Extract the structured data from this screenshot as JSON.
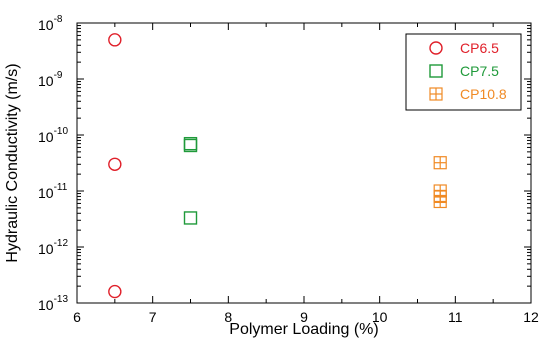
{
  "chart_data": {
    "type": "scatter",
    "xlabel": "Polymer Loading (%)",
    "ylabel": "Hydraulic Conductivity (m/s)",
    "xlim": [
      6,
      12
    ],
    "ylim": [
      1e-13,
      1e-08
    ],
    "yscale": "log",
    "x_ticks": [
      6,
      7,
      8,
      9,
      10,
      11,
      12
    ],
    "x_tick_labels": [
      "6",
      "7",
      "8",
      "9",
      "10",
      "11",
      "12"
    ],
    "y_ticks": [
      {
        "value": 1e-13,
        "base": "10",
        "exp": "-13"
      },
      {
        "value": 1e-12,
        "base": "10",
        "exp": "-12"
      },
      {
        "value": 1e-11,
        "base": "10",
        "exp": "-11"
      },
      {
        "value": 1e-10,
        "base": "10",
        "exp": "-10"
      },
      {
        "value": 1e-09,
        "base": "10",
        "exp": "-9"
      },
      {
        "value": 1e-08,
        "base": "10",
        "exp": "-8"
      }
    ],
    "grid": false,
    "legend_position": "top-right",
    "series": [
      {
        "name": "CP6.5",
        "marker": "circle",
        "color": "#e0202a",
        "points": [
          {
            "x": 6.5,
            "y": 5e-09
          },
          {
            "x": 6.5,
            "y": 3e-11
          },
          {
            "x": 6.5,
            "y": 1.6e-13
          }
        ]
      },
      {
        "name": "CP7.5",
        "marker": "square",
        "color": "#1f9a3a",
        "points": [
          {
            "x": 7.5,
            "y": 7e-11
          },
          {
            "x": 7.5,
            "y": 6.5e-11
          },
          {
            "x": 7.5,
            "y": 3.3e-12
          }
        ]
      },
      {
        "name": "CP10.8",
        "marker": "square-cross",
        "color": "#f08a24",
        "points": [
          {
            "x": 10.8,
            "y": 3.2e-11
          },
          {
            "x": 10.8,
            "y": 1e-11
          },
          {
            "x": 10.8,
            "y": 8e-12
          },
          {
            "x": 10.8,
            "y": 6.5e-12
          }
        ]
      }
    ]
  }
}
